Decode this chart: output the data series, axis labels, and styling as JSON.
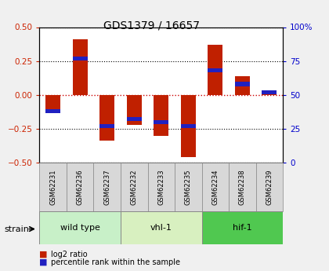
{
  "title": "GDS1379 / 16657",
  "samples": [
    "GSM62231",
    "GSM62236",
    "GSM62237",
    "GSM62232",
    "GSM62233",
    "GSM62235",
    "GSM62234",
    "GSM62238",
    "GSM62239"
  ],
  "log2_ratio": [
    -0.13,
    0.41,
    -0.34,
    -0.22,
    -0.3,
    -0.46,
    0.37,
    0.14,
    0.01
  ],
  "percentile_rank": [
    38,
    77,
    27,
    32,
    30,
    27,
    68,
    58,
    52
  ],
  "groups": [
    {
      "label": "wild type",
      "start": 0,
      "end": 3,
      "color": "#c8f0c8"
    },
    {
      "label": "vhl-1",
      "start": 3,
      "end": 6,
      "color": "#d8f0c0"
    },
    {
      "label": "hif-1",
      "start": 6,
      "end": 9,
      "color": "#50c850"
    }
  ],
  "ylim": [
    -0.5,
    0.5
  ],
  "y2lim": [
    0,
    100
  ],
  "bar_color_red": "#c02000",
  "bar_color_blue": "#2020c0",
  "bar_width": 0.55,
  "blue_bar_width": 0.55,
  "blue_bar_height": 0.03,
  "bg_color": "#f0f0f0",
  "plot_bg": "#ffffff",
  "zero_line_color": "#cc0000",
  "yticks_left": [
    -0.5,
    -0.25,
    0,
    0.25,
    0.5
  ],
  "yticks_right": [
    0,
    25,
    50,
    75,
    100
  ],
  "legend_label1": "log2 ratio",
  "legend_label2": "percentile rank within the sample"
}
